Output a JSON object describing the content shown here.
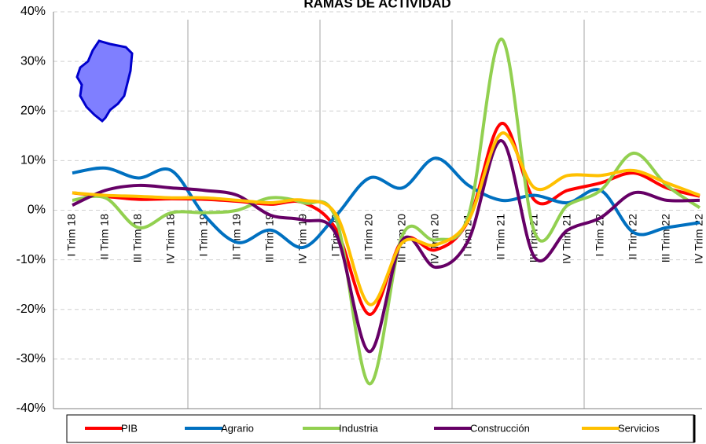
{
  "chart_data": {
    "type": "line",
    "title": "RAMAS DE ACTIVIDAD",
    "categories": [
      "I Trim 18",
      "II Trim 18",
      "III Trim 18",
      "IV Trim 18",
      "I Trim 19",
      "II Trim 19",
      "III Trim 19",
      "IV Trim 19",
      "I Trim 20",
      "II Trim 20",
      "III Trim 20",
      "IV Trim 20",
      "I Trim 21",
      "II Trim 21",
      "III Trim 21",
      "IV Trim 21",
      "I Trim 22",
      "II Trim 22",
      "III Trim 22",
      "IV Trim 22"
    ],
    "series": [
      {
        "name": "PIB",
        "color": "#ff0000",
        "values": [
          3.5,
          2.8,
          2.2,
          2.3,
          2.2,
          1.8,
          1.2,
          1.5,
          -4,
          -21,
          -6,
          -8,
          -2,
          17.5,
          2,
          4,
          5.5,
          7.5,
          4.5,
          2.8
        ]
      },
      {
        "name": "Agrario",
        "color": "#0070c0",
        "values": [
          7.5,
          8.5,
          6.5,
          8,
          -1,
          -6.5,
          -4,
          -7.5,
          -1,
          6.5,
          4.5,
          10.5,
          5,
          2,
          3,
          1.5,
          4,
          -4.5,
          -3.5,
          -2.5
        ]
      },
      {
        "name": "Industria",
        "color": "#92d050",
        "values": [
          2,
          2.5,
          -3.5,
          -0.5,
          -0.5,
          0,
          2.5,
          1.5,
          -2,
          -35,
          -5,
          -6,
          -1,
          34.5,
          -4.5,
          1,
          4,
          11.5,
          5,
          0.5
        ]
      },
      {
        "name": "Construcción",
        "color": "#660066",
        "values": [
          1,
          4,
          5,
          4.5,
          4,
          3,
          -1,
          -2,
          -5,
          -28.5,
          -6,
          -11.5,
          -6,
          14,
          -9.5,
          -4,
          -1.5,
          3.5,
          2,
          2
        ]
      },
      {
        "name": "Servicios",
        "color": "#ffc000",
        "values": [
          3.5,
          3,
          2.8,
          2.5,
          2.5,
          2,
          1.5,
          2,
          -1,
          -19,
          -6.5,
          -7,
          -2,
          15.5,
          4.5,
          7,
          7,
          8,
          5.5,
          3
        ]
      }
    ],
    "ylim": [
      -40,
      40
    ],
    "yticks": [
      {
        "value": -40,
        "label": "-40%"
      },
      {
        "value": -30,
        "label": "-30%"
      },
      {
        "value": -20,
        "label": "-20%"
      },
      {
        "value": -10,
        "label": "-10%"
      },
      {
        "value": 0,
        "label": "0%"
      },
      {
        "value": 10,
        "label": "10%"
      },
      {
        "value": 20,
        "label": "20%"
      },
      {
        "value": 30,
        "label": "30%"
      },
      {
        "value": 40,
        "label": "40%"
      }
    ],
    "grid": true,
    "legend": "bottom"
  }
}
